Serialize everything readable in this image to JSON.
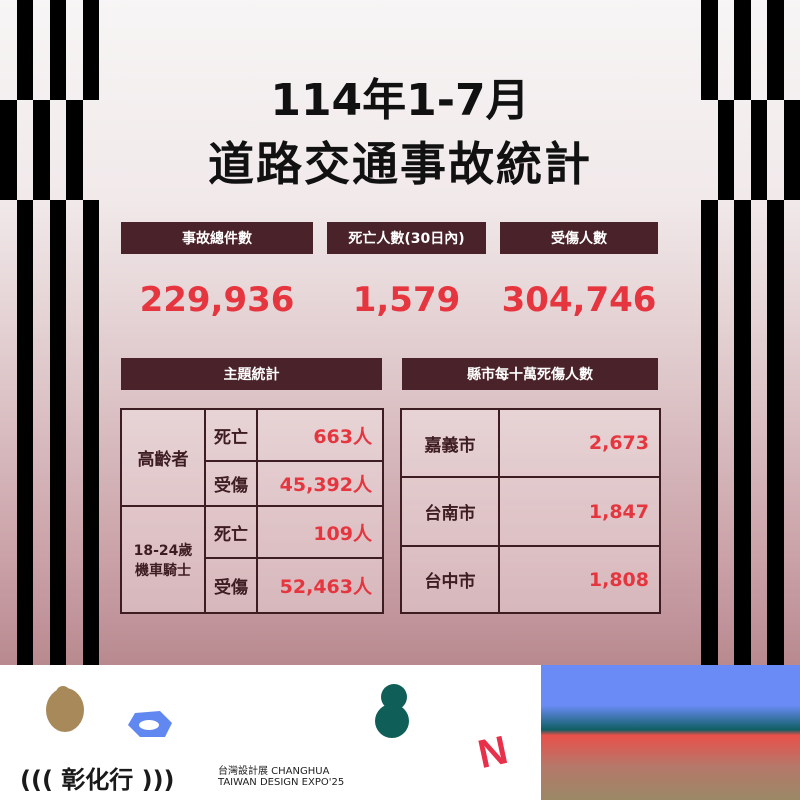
{
  "title": {
    "line1": "114年1-7月",
    "line2": "道路交通事故統計"
  },
  "summary": [
    {
      "label": "事故總件數",
      "value": "229,936"
    },
    {
      "label": "死亡人數(30日內)",
      "value": "1,579"
    },
    {
      "label": "受傷人數",
      "value": "304,746"
    }
  ],
  "topic": {
    "header": "主題統計",
    "groups": [
      {
        "name": "高齡者",
        "rows": [
          {
            "type": "死亡",
            "value": "663人"
          },
          {
            "type": "受傷",
            "value": "45,392人"
          }
        ]
      },
      {
        "name": "18-24歲\n機車騎士",
        "rows": [
          {
            "type": "死亡",
            "value": "109人"
          },
          {
            "type": "受傷",
            "value": "52,463人"
          }
        ]
      }
    ]
  },
  "city": {
    "header": "縣市每十萬死傷人數",
    "rows": [
      {
        "city": "嘉義市",
        "value": "2,673"
      },
      {
        "city": "台南市",
        "value": "1,847"
      },
      {
        "city": "台中市",
        "value": "1,808"
      }
    ]
  },
  "footer": {
    "logo": "((( 彰化行 )))",
    "line1": "台灣設計展 CHANGHUA",
    "line2": "TAIWAN DESIGN EXPO'25"
  },
  "colors": {
    "accent": "#e5363f",
    "header_bg": "#4a2229"
  }
}
